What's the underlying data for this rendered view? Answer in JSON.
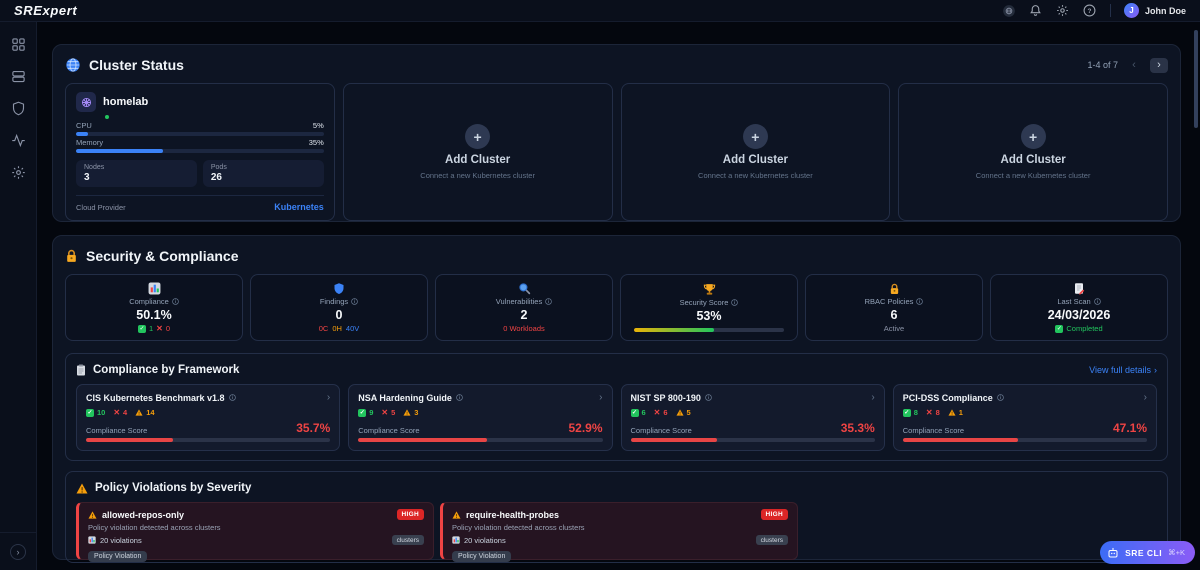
{
  "colors": {
    "accent": "#3b82f6",
    "danger": "#ef4444",
    "success": "#22c55e",
    "warning": "#f59e0b"
  },
  "header": {
    "logo": "SRExpert",
    "user": {
      "initial": "J",
      "name": "John Doe"
    }
  },
  "cluster_status": {
    "title": "Cluster Status",
    "pagination": "1-4 of 7",
    "cluster": {
      "name": "homelab",
      "cpu_label": "CPU",
      "cpu_value": "5%",
      "cpu_pct": 5,
      "memory_label": "Memory",
      "memory_value": "35%",
      "memory_pct": 35,
      "nodes_label": "Nodes",
      "nodes_value": "3",
      "pods_label": "Pods",
      "pods_value": "26",
      "provider_label": "Cloud Provider",
      "provider": "Kubernetes"
    },
    "add_cluster": {
      "title": "Add Cluster",
      "subtitle": "Connect a new Kubernetes cluster"
    }
  },
  "security": {
    "title": "Security & Compliance",
    "stats": [
      {
        "label": "Compliance",
        "value": "50.1%",
        "pass": "1",
        "fail": "0"
      },
      {
        "label": "Findings",
        "value": "0",
        "critical": "0C",
        "high": "0H",
        "vuln": "40V"
      },
      {
        "label": "Vulnerabilities",
        "value": "2",
        "sub": "0 Workloads"
      },
      {
        "label": "Security Score",
        "value": "53%",
        "bar_pct": 53
      },
      {
        "label": "RBAC Policies",
        "value": "6",
        "sub": "Active"
      },
      {
        "label": "Last Scan",
        "value": "24/03/2026",
        "sub": "Completed"
      }
    ]
  },
  "frameworks": {
    "title": "Compliance by Framework",
    "link": "View full details",
    "score_label": "Compliance Score",
    "cards": [
      {
        "title": "CIS Kubernetes Benchmark v1.8",
        "pass": "10",
        "fail": "4",
        "warn": "14",
        "score": "35.7%",
        "pct": 35.7
      },
      {
        "title": "NSA Hardening Guide",
        "pass": "9",
        "fail": "5",
        "warn": "3",
        "score": "52.9%",
        "pct": 52.9
      },
      {
        "title": "NIST SP 800-190",
        "pass": "6",
        "fail": "6",
        "warn": "5",
        "score": "35.3%",
        "pct": 35.3
      },
      {
        "title": "PCI-DSS Compliance",
        "pass": "8",
        "fail": "8",
        "warn": "1",
        "score": "47.1%",
        "pct": 47.1
      }
    ]
  },
  "violations": {
    "title": "Policy Violations by Severity",
    "cards": [
      {
        "name": "allowed-repos-only",
        "severity": "HIGH",
        "description": "Policy violation detected across clusters",
        "count": "20 violations",
        "scope": "clusters",
        "tag": "Policy Violation"
      },
      {
        "name": "require-health-probes",
        "severity": "HIGH",
        "description": "Policy violation detected across clusters",
        "count": "20 violations",
        "scope": "clusters",
        "tag": "Policy Violation"
      }
    ]
  },
  "cli_button": {
    "label": "SRE CLI",
    "shortcut": "⌘+K"
  }
}
